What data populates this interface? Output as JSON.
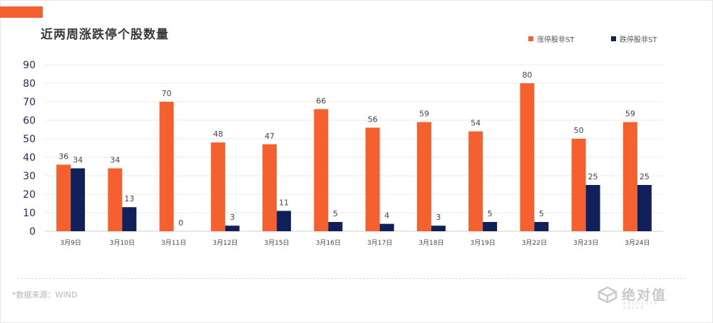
{
  "header": {
    "title": "近两周涨跌停个股数量"
  },
  "footer": {
    "source": "*数据来源：WIND",
    "watermark": "绝对值",
    "watermark_sub": "ABSOLUTE VALUE"
  },
  "colors": {
    "accent": "#f5602f",
    "rise": "#f5602f",
    "fall": "#10205a",
    "axis_label": "#1f2d5c"
  },
  "chart_data": {
    "type": "bar",
    "title": "近两周涨跌停个股数量",
    "categories": [
      "3月9日",
      "3月10日",
      "3月11日",
      "3月12日",
      "3月15日",
      "3月16日",
      "3月17日",
      "3月18日",
      "3月19日",
      "3月22日",
      "3月23日",
      "3月24日"
    ],
    "series": [
      {
        "name": "涨停股非ST",
        "color": "#f5602f",
        "values": [
          36,
          34,
          70,
          48,
          47,
          66,
          56,
          59,
          54,
          80,
          50,
          59
        ]
      },
      {
        "name": "跌停股非ST",
        "color": "#10205a",
        "values": [
          34,
          13,
          0,
          3,
          11,
          5,
          4,
          3,
          5,
          5,
          25,
          25
        ]
      }
    ],
    "ylim": [
      0,
      90
    ],
    "yticks": [
      0,
      10,
      20,
      30,
      40,
      50,
      60,
      70,
      80,
      90
    ],
    "grid": true,
    "legend_position": "top-right",
    "data_labels": true
  }
}
